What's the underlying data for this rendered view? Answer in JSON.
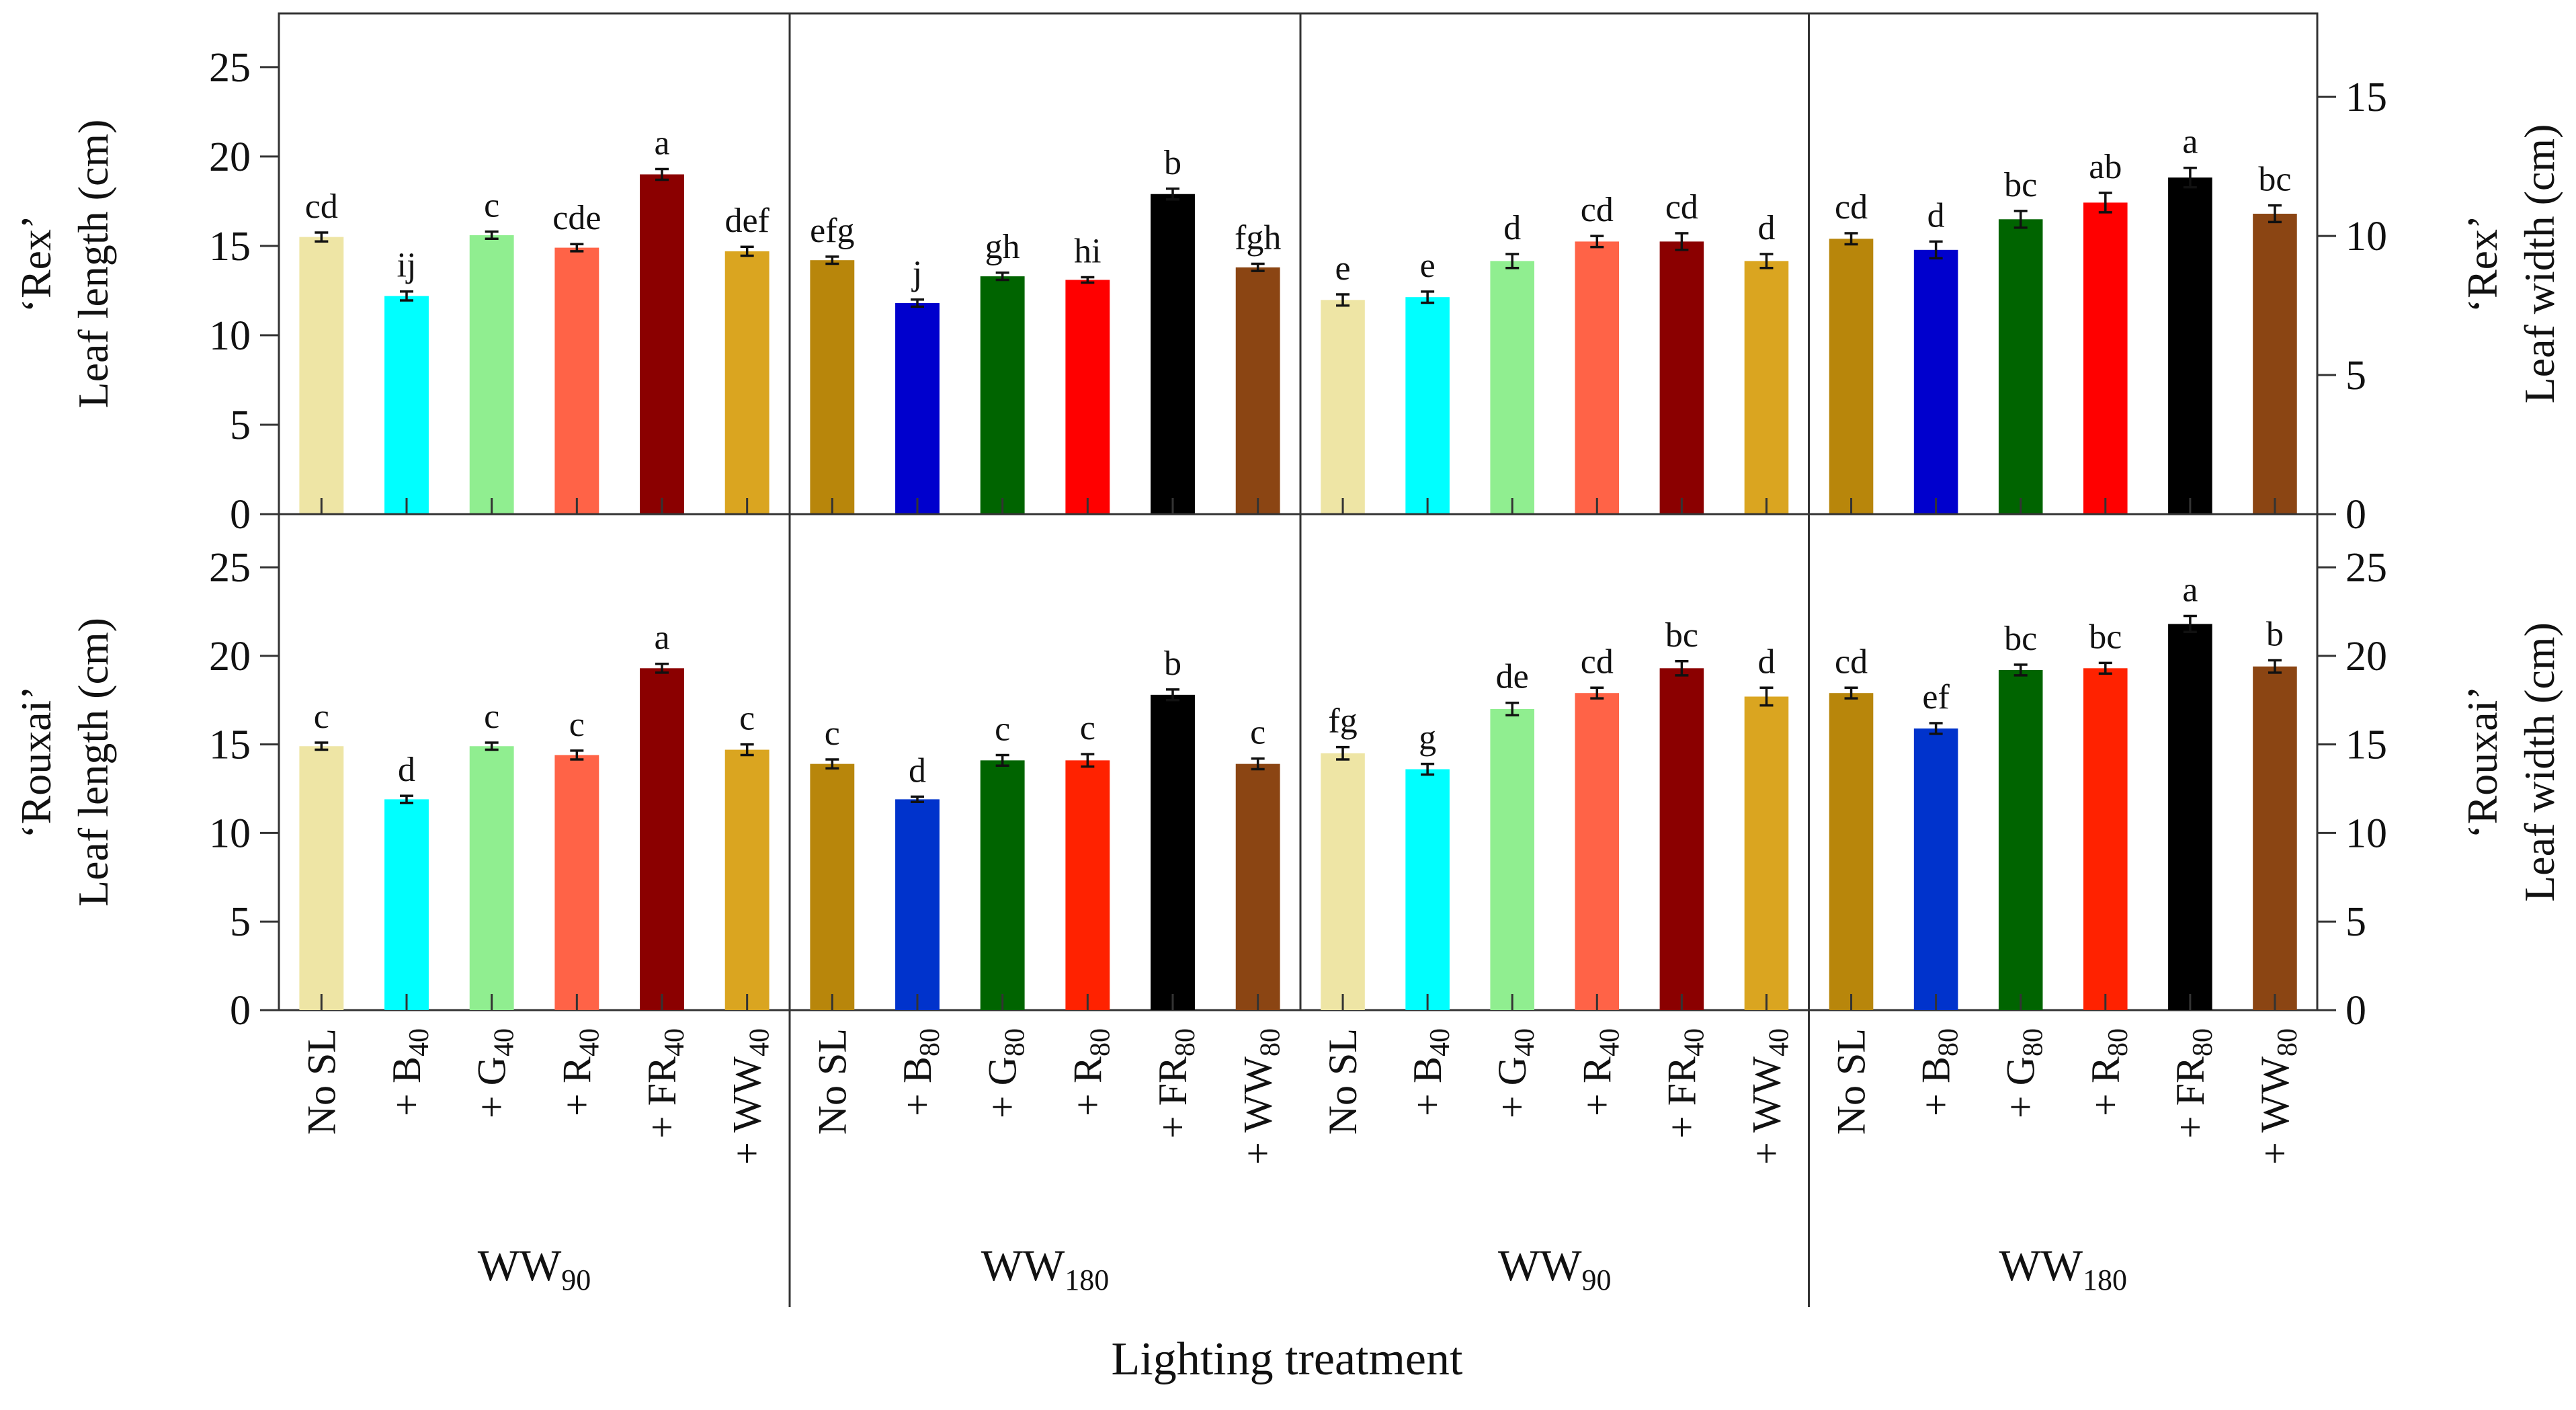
{
  "chart_data": {
    "type": "bar",
    "xlabel": "Lighting treatment",
    "panels": [
      {
        "row": "Rex",
        "measure": "length",
        "ylabel_line1": "‘Rex’",
        "ylabel_line2": "Leaf length (cm)",
        "ylim": [
          0,
          28
        ],
        "yticks": [
          0,
          5,
          10,
          15,
          20,
          25
        ],
        "groups": [
          {
            "label": "WW",
            "sub": "90",
            "categories": [
              {
                "t": "No SL",
                "s": ""
              },
              {
                "t": "+ B",
                "s": "40"
              },
              {
                "t": "+ G",
                "s": "40"
              },
              {
                "t": "+ R",
                "s": "40"
              },
              {
                "t": "+ FR",
                "s": "40"
              },
              {
                "t": "+ WW",
                "s": "40"
              }
            ],
            "values": [
              15.5,
              12.2,
              15.6,
              14.9,
              19.0,
              14.7
            ],
            "errors": [
              0.25,
              0.25,
              0.2,
              0.2,
              0.3,
              0.25
            ],
            "letters": [
              "cd",
              "ij",
              "c",
              "cde",
              "a",
              "def"
            ],
            "colors": [
              "#EEE5A5",
              "#00FFFF",
              "#90EE90",
              "#FF6347",
              "#8B0000",
              "#DAA520"
            ]
          },
          {
            "label": "WW",
            "sub": "180",
            "categories": [
              {
                "t": "No SL",
                "s": ""
              },
              {
                "t": "+ B",
                "s": "80"
              },
              {
                "t": "+ G",
                "s": "80"
              },
              {
                "t": "+ R",
                "s": "80"
              },
              {
                "t": "+ FR",
                "s": "80"
              },
              {
                "t": "+ WW",
                "s": "80"
              }
            ],
            "values": [
              14.2,
              11.8,
              13.3,
              13.1,
              17.9,
              13.8
            ],
            "errors": [
              0.2,
              0.2,
              0.2,
              0.15,
              0.3,
              0.2
            ],
            "letters": [
              "efg",
              "j",
              "gh",
              "hi",
              "b",
              "fgh"
            ],
            "colors": [
              "#B8860B",
              "#0000CD",
              "#006400",
              "#FF0000",
              "#000000",
              "#8B4513"
            ]
          }
        ]
      },
      {
        "row": "Rex",
        "measure": "width",
        "ylabel_line1": "‘Rex’",
        "ylabel_line2": "Leaf width (cm)",
        "ylim": [
          0,
          18
        ],
        "yticks": [
          0,
          5,
          10,
          15
        ],
        "groups": [
          {
            "label": "WW",
            "sub": "90",
            "categories": [
              {
                "t": "No SL",
                "s": ""
              },
              {
                "t": "+ B",
                "s": "40"
              },
              {
                "t": "+ G",
                "s": "40"
              },
              {
                "t": "+ R",
                "s": "40"
              },
              {
                "t": "+ FR",
                "s": "40"
              },
              {
                "t": "+ WW",
                "s": "40"
              }
            ],
            "values": [
              7.7,
              7.8,
              9.1,
              9.8,
              9.8,
              9.1
            ],
            "errors": [
              0.2,
              0.2,
              0.25,
              0.2,
              0.3,
              0.25
            ],
            "letters": [
              "e",
              "e",
              "d",
              "cd",
              "cd",
              "d"
            ],
            "colors": [
              "#EEE5A5",
              "#00FFFF",
              "#90EE90",
              "#FF6347",
              "#8B0000",
              "#DAA520"
            ]
          },
          {
            "label": "WW",
            "sub": "180",
            "categories": [
              {
                "t": "No SL",
                "s": ""
              },
              {
                "t": "+ B",
                "s": "80"
              },
              {
                "t": "+ G",
                "s": "80"
              },
              {
                "t": "+ R",
                "s": "80"
              },
              {
                "t": "+ FR",
                "s": "80"
              },
              {
                "t": "+ WW",
                "s": "80"
              }
            ],
            "values": [
              9.9,
              9.5,
              10.6,
              11.2,
              12.1,
              10.8
            ],
            "errors": [
              0.2,
              0.3,
              0.3,
              0.35,
              0.35,
              0.3
            ],
            "letters": [
              "cd",
              "d",
              "bc",
              "ab",
              "a",
              "bc"
            ],
            "colors": [
              "#B8860B",
              "#0000CD",
              "#006400",
              "#FF0000",
              "#000000",
              "#8B4513"
            ]
          }
        ]
      },
      {
        "row": "Rouxai",
        "measure": "length",
        "ylabel_line1": "‘Rouxai’",
        "ylabel_line2": "Leaf length (cm)",
        "ylim": [
          0,
          28
        ],
        "yticks": [
          0,
          5,
          10,
          15,
          20,
          25
        ],
        "groups": [
          {
            "label": "WW",
            "sub": "90",
            "categories": [
              {
                "t": "No SL",
                "s": ""
              },
              {
                "t": "+ B",
                "s": "40"
              },
              {
                "t": "+ G",
                "s": "40"
              },
              {
                "t": "+ R",
                "s": "40"
              },
              {
                "t": "+ FR",
                "s": "40"
              },
              {
                "t": "+ WW",
                "s": "40"
              }
            ],
            "values": [
              14.9,
              11.9,
              14.9,
              14.4,
              19.3,
              14.7
            ],
            "errors": [
              0.2,
              0.2,
              0.2,
              0.25,
              0.25,
              0.3
            ],
            "letters": [
              "c",
              "d",
              "c",
              "c",
              "a",
              "c"
            ],
            "colors": [
              "#EEE5A5",
              "#00FFFF",
              "#90EE90",
              "#FF6347",
              "#8B0000",
              "#DAA520"
            ]
          },
          {
            "label": "WW",
            "sub": "180",
            "categories": [
              {
                "t": "No SL",
                "s": ""
              },
              {
                "t": "+ B",
                "s": "80"
              },
              {
                "t": "+ G",
                "s": "80"
              },
              {
                "t": "+ R",
                "s": "80"
              },
              {
                "t": "+ FR",
                "s": "80"
              },
              {
                "t": "+ WW",
                "s": "80"
              }
            ],
            "values": [
              13.9,
              11.9,
              14.1,
              14.1,
              17.8,
              13.9
            ],
            "errors": [
              0.25,
              0.15,
              0.3,
              0.35,
              0.3,
              0.3
            ],
            "letters": [
              "c",
              "d",
              "c",
              "c",
              "b",
              "c"
            ],
            "colors": [
              "#B8860B",
              "#0033CC",
              "#006400",
              "#FF2200",
              "#000000",
              "#8B4513"
            ]
          }
        ]
      },
      {
        "row": "Rouxai",
        "measure": "width",
        "ylabel_line1": "‘Rouxai’",
        "ylabel_line2": "Leaf width (cm)",
        "ylim": [
          0,
          28
        ],
        "yticks": [
          0,
          5,
          10,
          15,
          20,
          25
        ],
        "groups": [
          {
            "label": "WW",
            "sub": "90",
            "categories": [
              {
                "t": "No SL",
                "s": ""
              },
              {
                "t": "+ B",
                "s": "40"
              },
              {
                "t": "+ G",
                "s": "40"
              },
              {
                "t": "+ R",
                "s": "40"
              },
              {
                "t": "+ FR",
                "s": "40"
              },
              {
                "t": "+ WW",
                "s": "40"
              }
            ],
            "values": [
              14.5,
              13.6,
              17.0,
              17.9,
              19.3,
              17.7
            ],
            "errors": [
              0.35,
              0.3,
              0.35,
              0.3,
              0.4,
              0.5
            ],
            "letters": [
              "fg",
              "g",
              "de",
              "cd",
              "bc",
              "d"
            ],
            "colors": [
              "#EEE5A5",
              "#00FFFF",
              "#90EE90",
              "#FF6347",
              "#8B0000",
              "#DAA520"
            ]
          },
          {
            "label": "WW",
            "sub": "180",
            "categories": [
              {
                "t": "No SL",
                "s": ""
              },
              {
                "t": "+ B",
                "s": "80"
              },
              {
                "t": "+ G",
                "s": "80"
              },
              {
                "t": "+ R",
                "s": "80"
              },
              {
                "t": "+ FR",
                "s": "80"
              },
              {
                "t": "+ WW",
                "s": "80"
              }
            ],
            "values": [
              17.9,
              15.9,
              19.2,
              19.3,
              21.8,
              19.4
            ],
            "errors": [
              0.3,
              0.3,
              0.3,
              0.3,
              0.45,
              0.35
            ],
            "letters": [
              "cd",
              "ef",
              "bc",
              "bc",
              "a",
              "b"
            ],
            "colors": [
              "#B8860B",
              "#0033CC",
              "#006400",
              "#FF2200",
              "#000000",
              "#8B4513"
            ]
          }
        ]
      }
    ]
  }
}
